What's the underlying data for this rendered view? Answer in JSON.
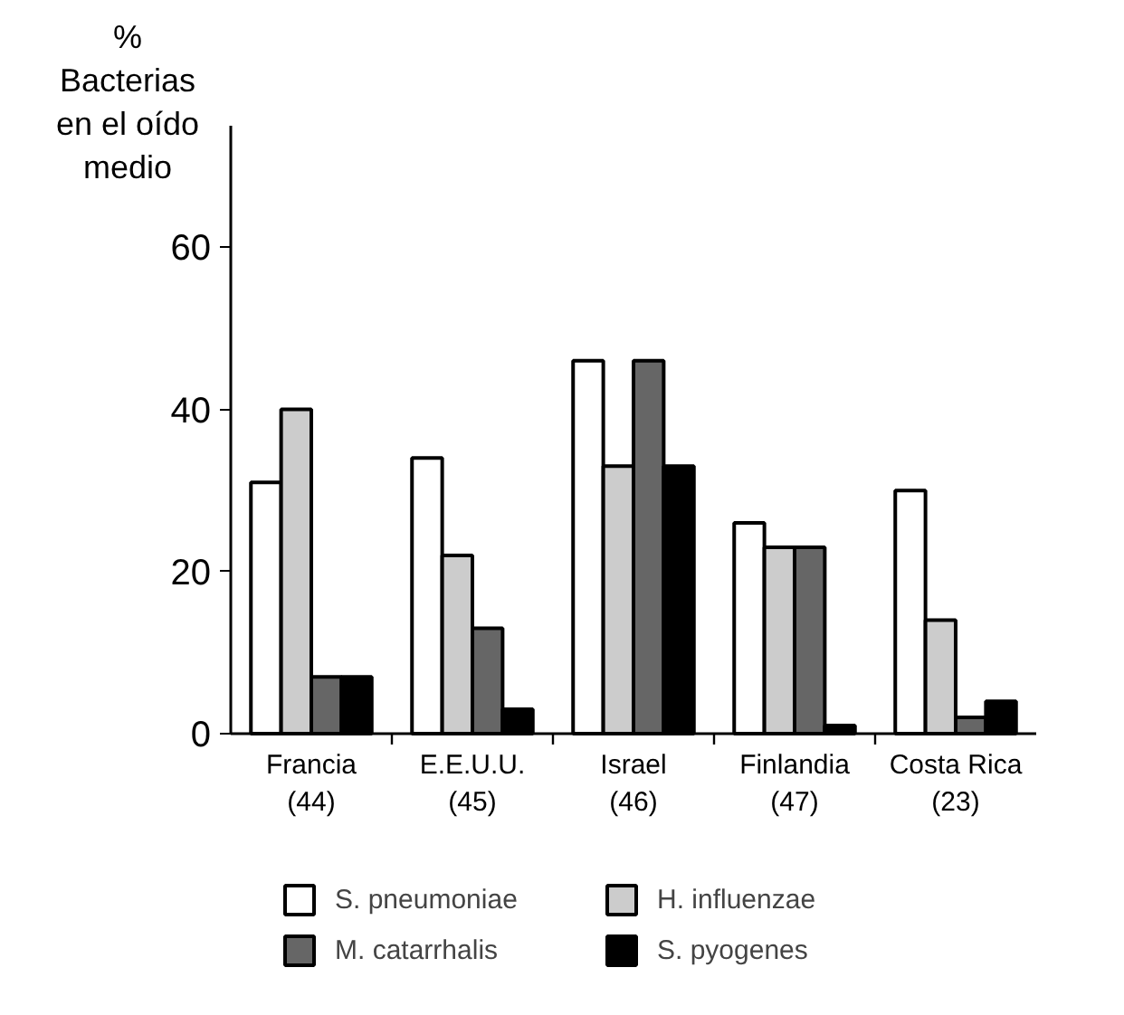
{
  "chart_data": {
    "type": "bar",
    "ylabel": "%\nBacterias\nen el oído\nmedio",
    "categories": [
      "Francia\n(44)",
      "E.E.U.U.\n(45)",
      "Israel\n(46)",
      "Finlandia\n(47)",
      "Costa Rica\n(23)"
    ],
    "series": [
      {
        "name": "S. pneumoniae",
        "color": "#ffffff",
        "values": [
          31,
          34,
          46,
          26,
          30
        ]
      },
      {
        "name": "H. influenzae",
        "color": "#cccccc",
        "values": [
          40,
          22,
          33,
          23,
          14
        ]
      },
      {
        "name": "M. catarrhalis",
        "color": "#666666",
        "values": [
          7,
          13,
          46,
          23,
          2
        ]
      },
      {
        "name": "S. pyogenes",
        "color": "#000000",
        "values": [
          7,
          3,
          33,
          1,
          4
        ]
      }
    ],
    "ylim": [
      0,
      75
    ],
    "yticks": [
      0,
      20,
      40,
      60
    ],
    "grid": false,
    "legend": "bottom"
  }
}
